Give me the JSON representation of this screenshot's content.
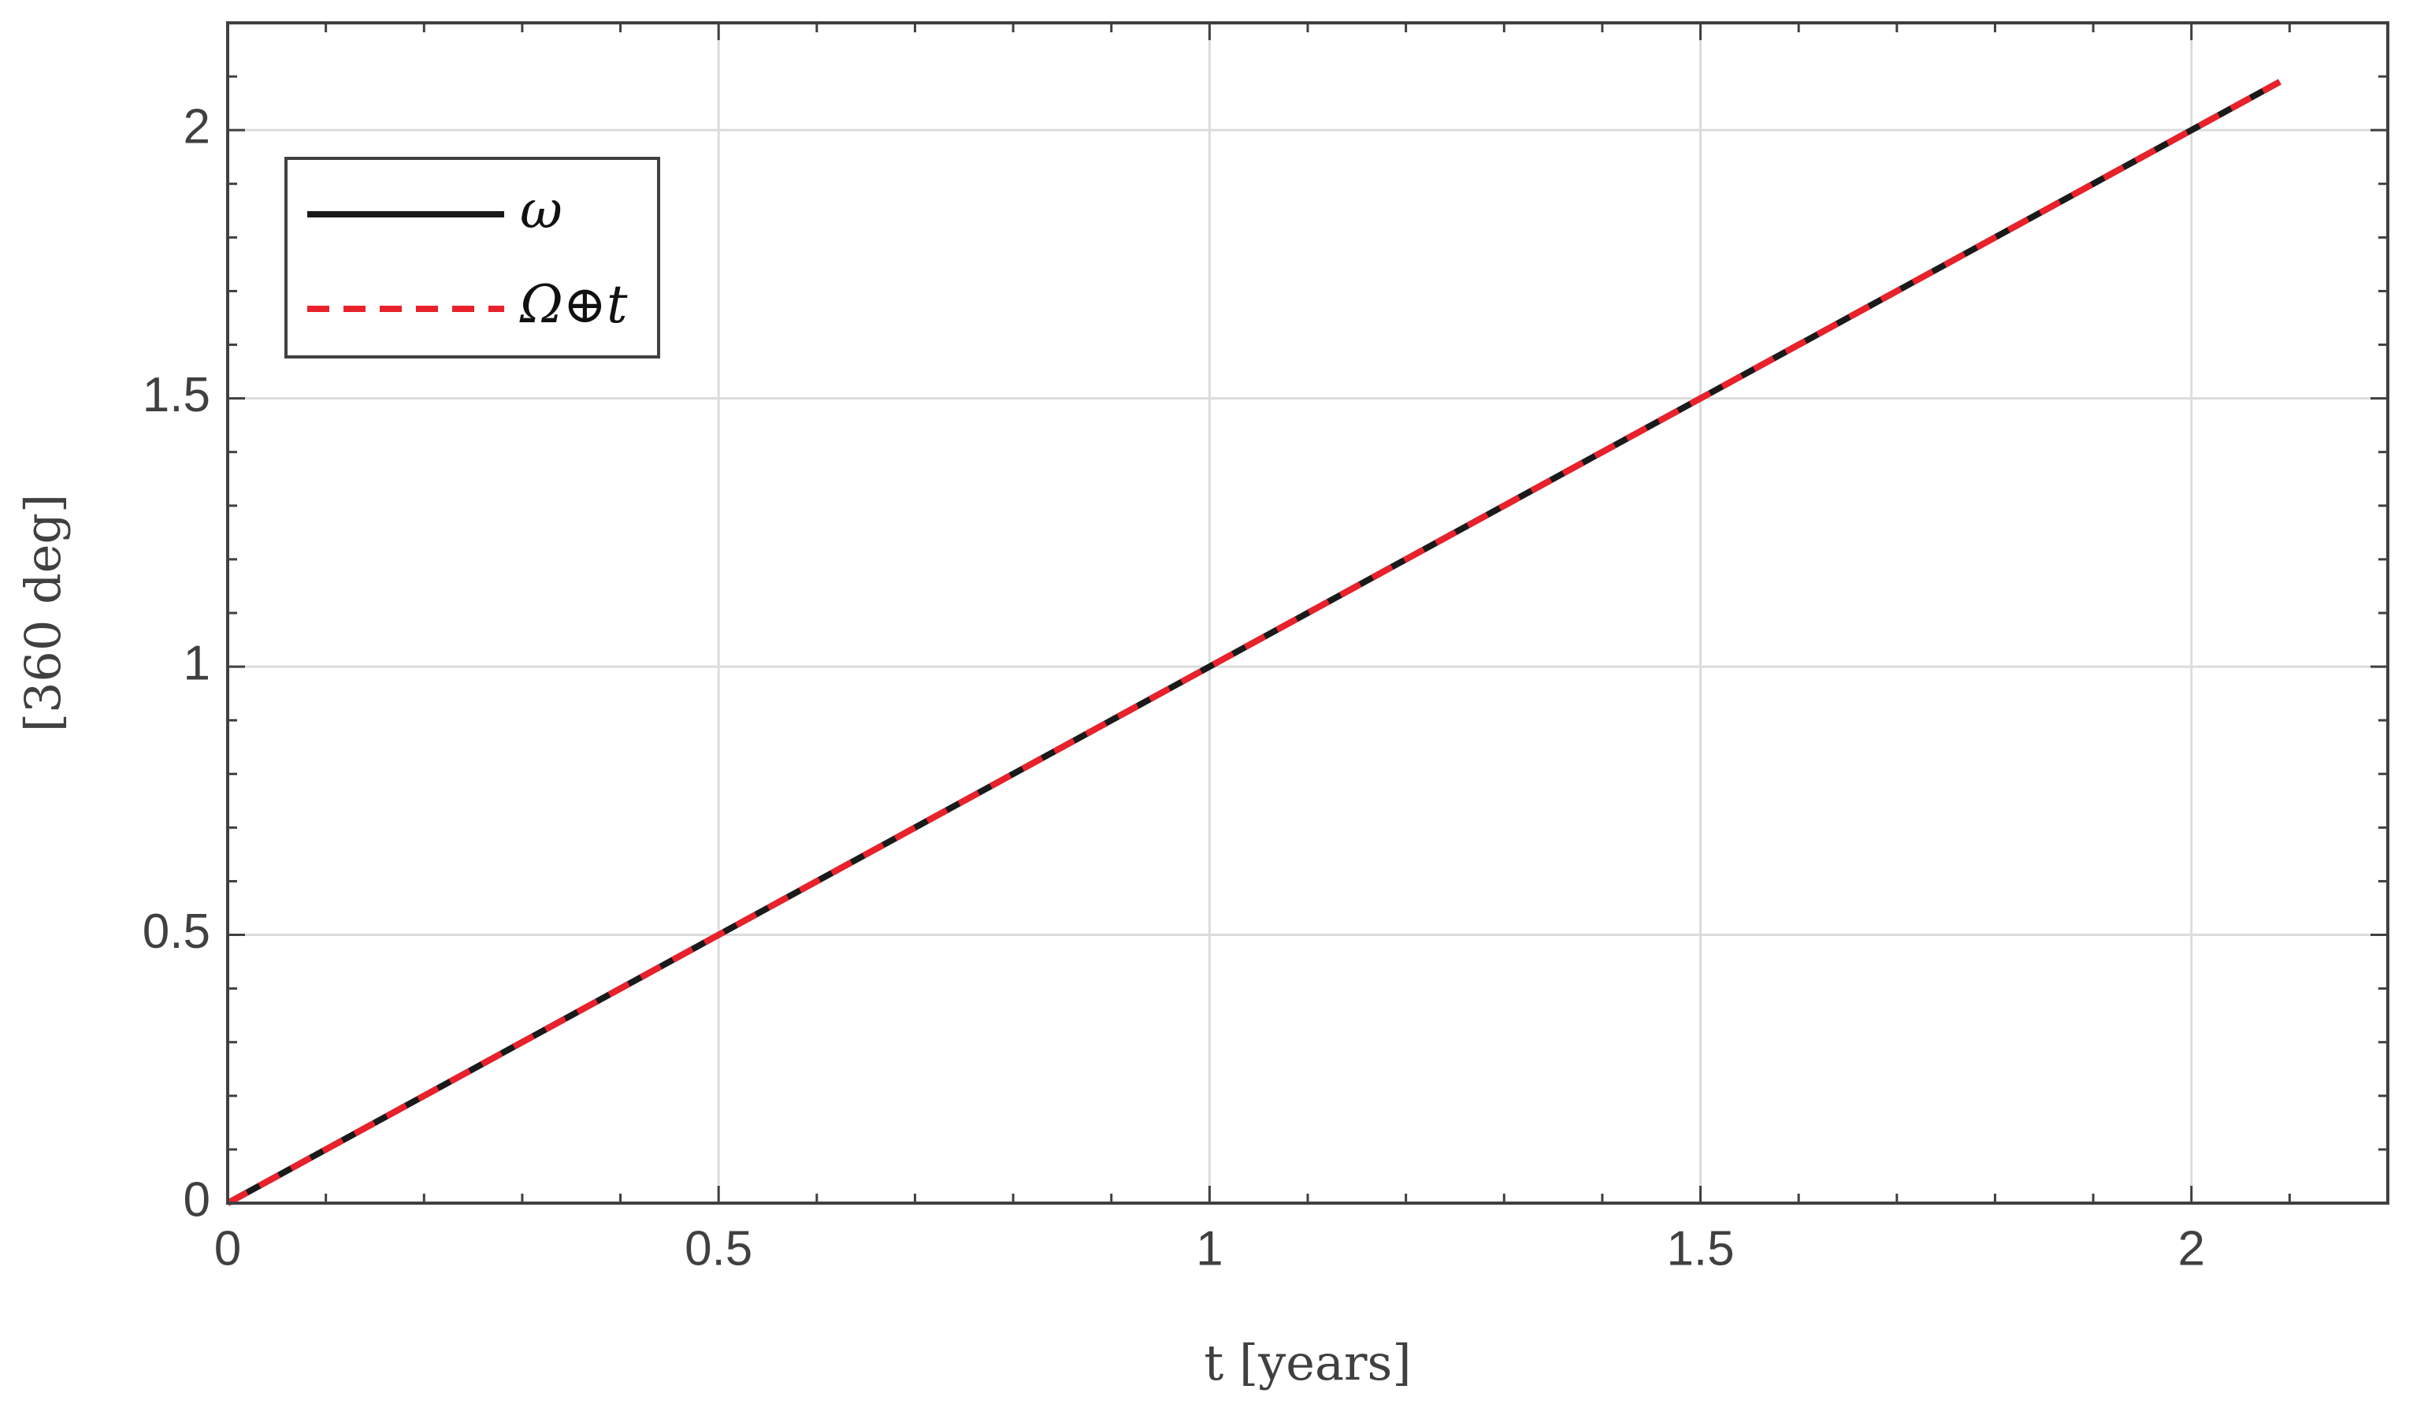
{
  "chart_data": {
    "type": "line",
    "x": [
      0,
      2.09
    ],
    "series": [
      {
        "name": "ω",
        "color": "#1a1a1a",
        "dash": "solid",
        "values": [
          0,
          2.09
        ]
      },
      {
        "name": "Ω⊕t",
        "color": "#e8212b",
        "dash": "dashed",
        "values": [
          0,
          2.09
        ]
      }
    ],
    "xlabel": "t [years]",
    "ylabel": "[360 deg]",
    "xlim": [
      0,
      2.2
    ],
    "ylim": [
      0,
      2.2
    ],
    "xticks": [
      0,
      0.5,
      1,
      1.5,
      2
    ],
    "yticks": [
      0,
      0.5,
      1,
      1.5,
      2
    ],
    "xminorticks": [
      0.1,
      0.2,
      0.3,
      0.4,
      0.6,
      0.7,
      0.8,
      0.9,
      1.1,
      1.2,
      1.3,
      1.4,
      1.6,
      1.7,
      1.8,
      1.9,
      2.1
    ],
    "yminorticks": [
      0.1,
      0.2,
      0.3,
      0.4,
      0.6,
      0.7,
      0.8,
      0.9,
      1.1,
      1.2,
      1.3,
      1.4,
      1.6,
      1.7,
      1.8,
      1.9,
      2.1
    ],
    "grid": true,
    "legend": "upper left"
  }
}
